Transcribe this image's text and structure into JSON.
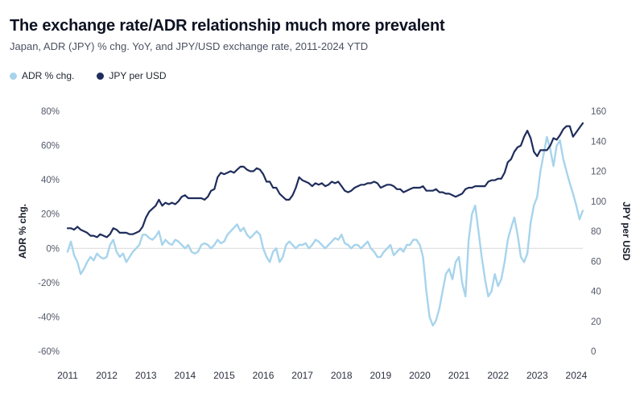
{
  "chart_data": {
    "type": "line",
    "title": "The exchange rate/ADR relationship much more prevalent",
    "subtitle": "Japan, ADR (JPY) % chg. YoY, and JPY/USD exchange rate, 2011-2024 YTD",
    "zero_line_color": "#d9d9d9",
    "x_axis": {
      "tick_labels": [
        "2011",
        "2012",
        "2013",
        "2014",
        "2015",
        "2016",
        "2017",
        "2018",
        "2019",
        "2020",
        "2021",
        "2022",
        "2023",
        "2024"
      ],
      "points_per_year": 12
    },
    "left_axis": {
      "label": "ADR % chg.",
      "min": -60,
      "max": 80,
      "tick_values": [
        80,
        60,
        40,
        20,
        0,
        -20,
        -40,
        -60
      ],
      "tick_suffix": "%"
    },
    "right_axis": {
      "label": "JPY per USD",
      "min": 0,
      "max": 160,
      "tick_values": [
        160,
        140,
        120,
        100,
        80,
        60,
        40,
        20,
        0
      ]
    },
    "series": [
      {
        "id": "adr",
        "name": "ADR % chg.",
        "axis": "left",
        "color": "#a7d4ec",
        "width": 2.4,
        "values": [
          -2,
          4,
          -4,
          -8,
          -15,
          -12,
          -8,
          -5,
          -7,
          -3,
          -5,
          -6,
          -5,
          2,
          5,
          -2,
          -5,
          -3,
          -8,
          -5,
          -2,
          0,
          2,
          8,
          8,
          6,
          5,
          7,
          10,
          2,
          5,
          3,
          2,
          5,
          4,
          2,
          0,
          2,
          -2,
          -3,
          -2,
          2,
          3,
          2,
          0,
          2,
          5,
          3,
          4,
          8,
          10,
          12,
          14,
          10,
          12,
          8,
          6,
          8,
          10,
          8,
          0,
          -5,
          -8,
          -2,
          0,
          -8,
          -5,
          2,
          4,
          2,
          0,
          2,
          2,
          3,
          0,
          2,
          5,
          4,
          2,
          0,
          2,
          4,
          6,
          5,
          8,
          3,
          2,
          0,
          2,
          2,
          0,
          2,
          4,
          0,
          -2,
          -5,
          -5,
          -2,
          0,
          2,
          -4,
          -2,
          0,
          -2,
          2,
          2,
          5,
          5,
          2,
          -5,
          -25,
          -40,
          -45,
          -42,
          -35,
          -25,
          -15,
          -12,
          -18,
          -8,
          -5,
          -20,
          -28,
          5,
          20,
          25,
          10,
          -5,
          -18,
          -28,
          -25,
          -15,
          -22,
          -18,
          -8,
          5,
          12,
          18,
          8,
          -5,
          -8,
          -3,
          15,
          25,
          30,
          45,
          55,
          65,
          58,
          48,
          60,
          63,
          52,
          45,
          38,
          32,
          25,
          17,
          22
        ]
      },
      {
        "id": "jpy",
        "name": "JPY per USD",
        "axis": "right",
        "color": "#1f2d5c",
        "width": 2.2,
        "values": [
          82,
          82,
          81,
          83,
          81,
          80,
          79,
          77,
          77,
          76,
          78,
          77,
          76,
          78,
          82,
          81,
          79,
          79,
          79,
          78,
          78,
          79,
          80,
          83,
          89,
          93,
          95,
          97,
          101,
          97,
          99,
          98,
          99,
          98,
          100,
          103,
          104,
          102,
          102,
          102,
          102,
          102,
          101,
          103,
          107,
          108,
          116,
          119,
          118,
          119,
          120,
          119,
          121,
          123,
          123,
          121,
          120,
          120,
          122,
          121,
          118,
          113,
          113,
          109,
          109,
          105,
          103,
          101,
          101,
          104,
          109,
          116,
          114,
          113,
          112,
          110,
          112,
          111,
          112,
          110,
          111,
          113,
          112,
          113,
          110,
          107,
          106,
          107,
          109,
          110,
          111,
          111,
          112,
          112,
          113,
          112,
          109,
          110,
          111,
          111,
          110,
          108,
          108,
          106,
          107,
          108,
          109,
          109,
          109,
          110,
          107,
          107,
          107,
          108,
          106,
          106,
          105,
          105,
          104,
          103,
          104,
          105,
          108,
          109,
          109,
          110,
          110,
          110,
          110,
          113,
          114,
          114,
          115,
          115,
          119,
          126,
          128,
          133,
          136,
          137,
          143,
          147,
          142,
          133,
          130,
          134,
          134,
          134,
          137,
          142,
          141,
          144,
          148,
          150,
          150,
          143,
          146,
          149,
          152
        ]
      }
    ]
  }
}
